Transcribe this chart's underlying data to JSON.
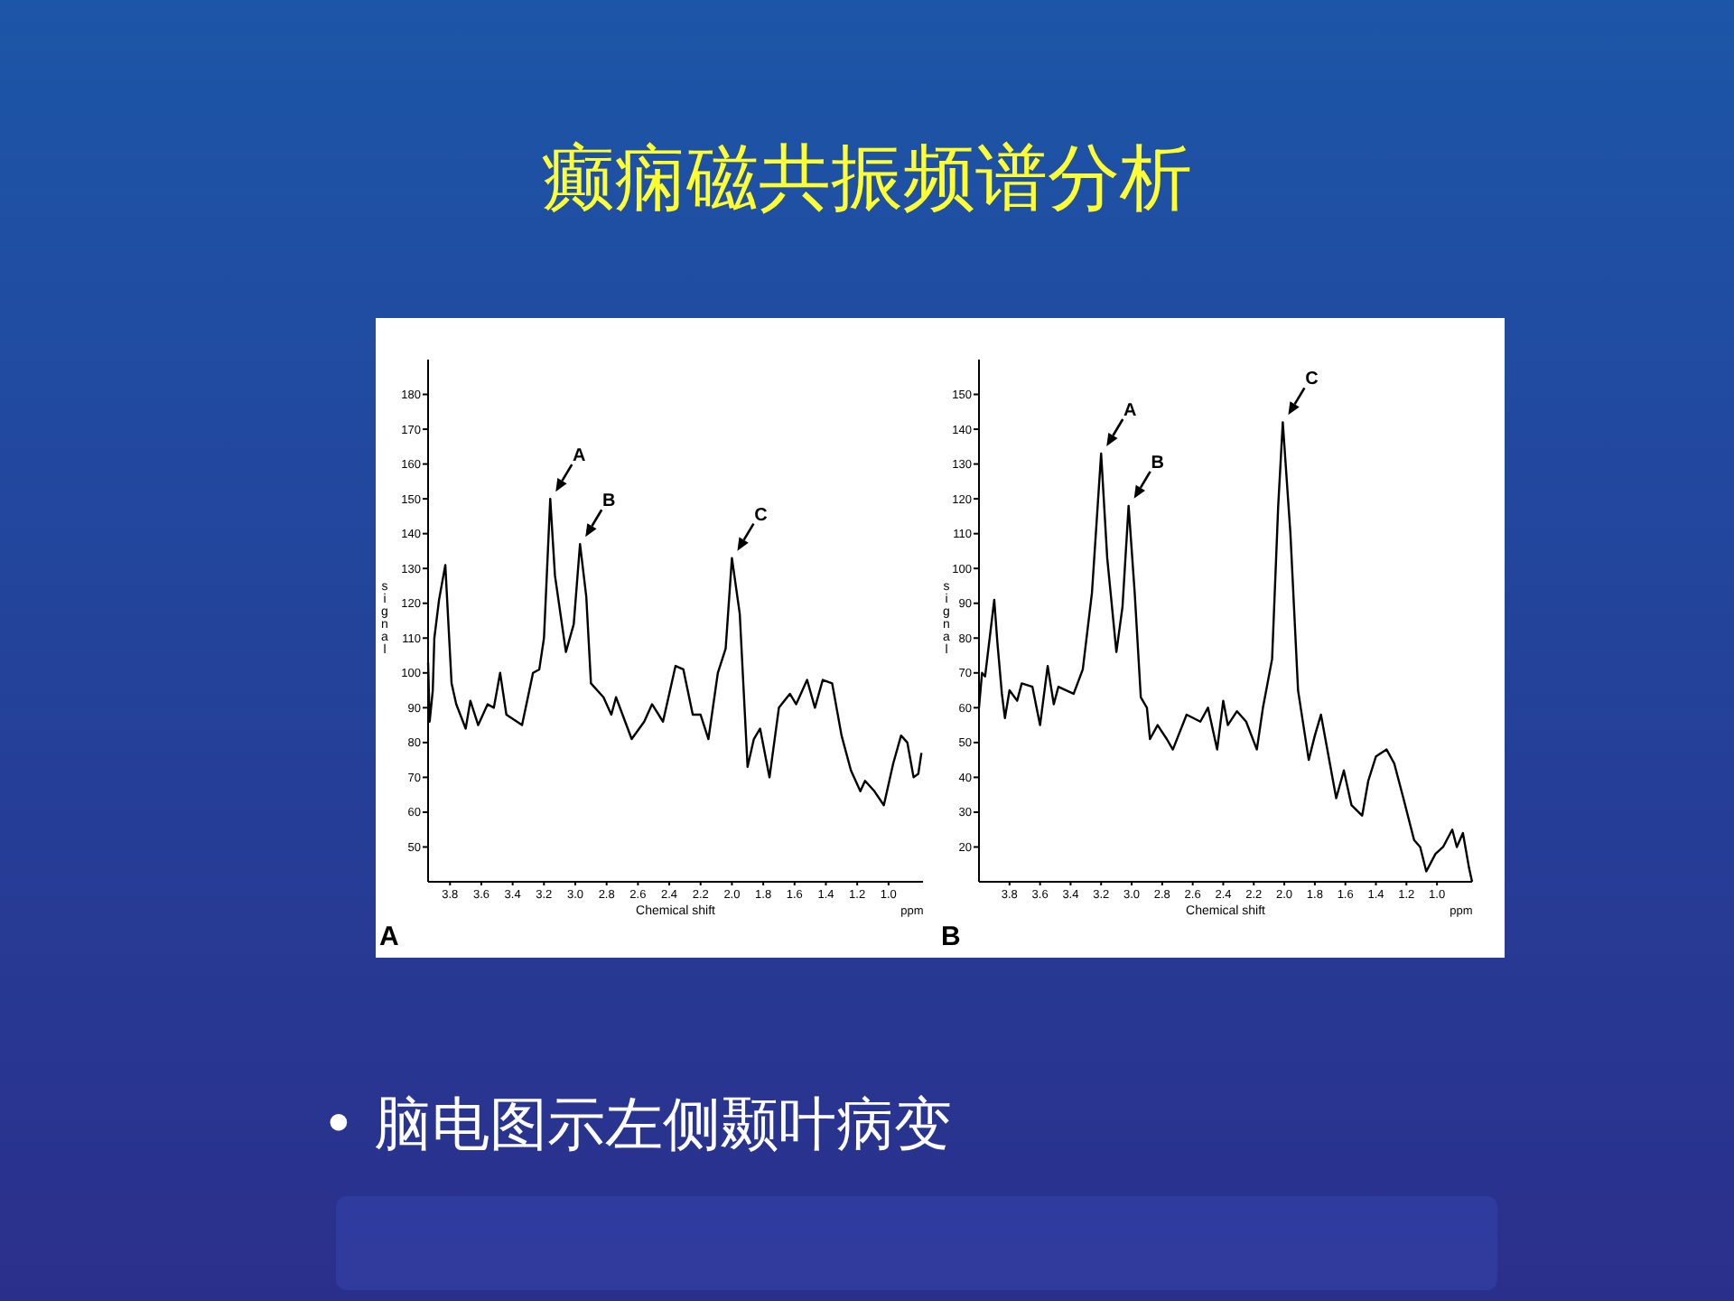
{
  "chart_data": [
    {
      "type": "other",
      "title": "癫痫磁共振频谱分析",
      "annotations": [
        "• 脑电图示左侧颞叶病变"
      ]
    },
    {
      "type": "line",
      "xlabel": "Chemical shift",
      "ylabel": "signal",
      "xlim": [
        3.94,
        0.78
      ],
      "ylim": [
        40,
        190
      ],
      "marker": "none",
      "line_style": "solid",
      "xticks": [
        3.8,
        3.6,
        3.4,
        3.2,
        {
          "value": 3.0,
          "label": "3.0"
        },
        2.8,
        2.6,
        2.4,
        2.2,
        {
          "value": 2.0,
          "label": "2.0"
        },
        1.8,
        1.6,
        1.4,
        1.2,
        {
          "value": 1.0,
          "label": "1.0"
        }
      ],
      "yticks": [
        50,
        60,
        70,
        80,
        90,
        100,
        110,
        120,
        130,
        140,
        150,
        160,
        170,
        180
      ],
      "series": [
        {
          "color": "#000000",
          "x": [
            3.94,
            3.93,
            3.91,
            3.9,
            3.87,
            3.83,
            3.79,
            3.76,
            3.7,
            3.67,
            3.62,
            3.56,
            3.52,
            3.48,
            3.44,
            3.34,
            3.27,
            3.23,
            3.2,
            3.16,
            3.13,
            3.06,
            3.01,
            2.97,
            2.93,
            2.9,
            2.82,
            2.77,
            2.74,
            2.64,
            2.56,
            2.51,
            2.44,
            2.36,
            2.31,
            2.25,
            2.2,
            2.15,
            2.09,
            2.04,
            2.0,
            1.95,
            1.9,
            1.86,
            1.82,
            1.76,
            1.7,
            1.63,
            1.59,
            1.52,
            1.47,
            1.42,
            1.36,
            1.3,
            1.24,
            1.18,
            1.15,
            1.09,
            1.03,
            0.97,
            0.92,
            0.88,
            0.84,
            0.81,
            0.79
          ],
          "values": [
            103,
            86,
            95,
            110,
            121,
            131,
            97,
            91,
            84,
            92,
            85,
            91,
            90,
            100,
            88,
            85,
            100,
            101,
            110,
            150,
            128,
            106,
            114,
            137,
            122,
            97,
            93,
            88,
            93,
            81,
            86,
            91,
            86,
            102,
            101,
            88,
            88,
            81,
            100,
            107,
            133,
            117,
            73,
            81,
            84,
            70,
            90,
            94,
            91,
            98,
            90,
            98,
            97,
            82,
            72,
            66,
            69,
            66,
            62,
            74,
            82,
            80,
            70,
            71,
            77
          ]
        }
      ],
      "annotations": [
        {
          "text": "A",
          "x": 3.16,
          "y": 150
        },
        {
          "text": "B",
          "x": 2.97,
          "y": 137
        },
        {
          "text": "C",
          "x": 2.0,
          "y": 133
        },
        "ppm",
        "A"
      ]
    },
    {
      "type": "line",
      "xlabel": "Chemical shift",
      "ylabel": "signal",
      "xlim": [
        4.0,
        0.77
      ],
      "ylim": [
        10,
        160
      ],
      "marker": "none",
      "line_style": "solid",
      "xticks": [
        3.8,
        3.6,
        3.4,
        3.2,
        {
          "value": 3.0,
          "label": "3.0"
        },
        2.8,
        2.6,
        2.4,
        2.2,
        {
          "value": 2.0,
          "label": "2.0"
        },
        1.8,
        1.6,
        1.4,
        1.2,
        {
          "value": 1.0,
          "label": "1.0"
        }
      ],
      "yticks": [
        20,
        30,
        40,
        50,
        60,
        70,
        80,
        90,
        100,
        110,
        120,
        130,
        140,
        150
      ],
      "series": [
        {
          "color": "#000000",
          "x": [
            4.0,
            3.98,
            3.96,
            3.9,
            3.88,
            3.85,
            3.83,
            3.8,
            3.75,
            3.72,
            3.65,
            3.6,
            3.55,
            3.51,
            3.48,
            3.38,
            3.32,
            3.26,
            3.2,
            3.16,
            3.1,
            3.06,
            3.02,
            2.98,
            2.94,
            2.9,
            2.88,
            2.83,
            2.77,
            2.73,
            2.64,
            2.55,
            2.5,
            2.44,
            2.4,
            2.37,
            2.31,
            2.25,
            2.18,
            2.14,
            2.08,
            2.04,
            2.01,
            1.96,
            1.91,
            1.84,
            1.8,
            1.76,
            1.66,
            1.61,
            1.56,
            1.49,
            1.45,
            1.4,
            1.33,
            1.28,
            1.22,
            1.15,
            1.11,
            1.07,
            1.01,
            0.96,
            0.9,
            0.87,
            0.83,
            0.79,
            0.77
          ],
          "values": [
            60,
            70,
            69,
            91,
            79,
            64,
            57,
            65,
            62,
            67,
            66,
            55,
            72,
            61,
            66,
            64,
            71,
            93,
            133,
            103,
            76,
            89,
            118,
            93,
            63,
            60,
            51,
            55,
            51,
            48,
            58,
            56,
            60,
            48,
            62,
            55,
            59,
            56,
            48,
            60,
            74,
            118,
            142,
            110,
            65,
            45,
            52,
            58,
            34,
            42,
            32,
            29,
            39,
            46,
            48,
            44,
            34,
            22,
            20,
            13,
            18,
            20,
            25,
            20,
            24,
            14,
            10
          ]
        }
      ],
      "annotations": [
        {
          "text": "A",
          "x": 3.2,
          "y": 133
        },
        {
          "text": "B",
          "x": 3.02,
          "y": 118
        },
        {
          "text": "C",
          "x": 2.01,
          "y": 142
        },
        "ppm",
        "B"
      ]
    }
  ]
}
